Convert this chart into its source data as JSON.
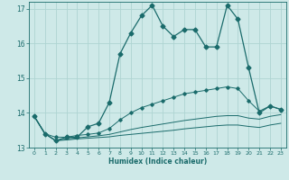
{
  "xlabel": "Humidex (Indice chaleur)",
  "ylabel": "",
  "background_color": "#cee9e8",
  "grid_color": "#aed4d2",
  "line_color": "#1a6b6b",
  "xlim": [
    -0.5,
    23.5
  ],
  "ylim": [
    13.0,
    17.2
  ],
  "xticks": [
    0,
    1,
    2,
    3,
    4,
    5,
    6,
    7,
    8,
    9,
    10,
    11,
    12,
    13,
    14,
    15,
    16,
    17,
    18,
    19,
    20,
    21,
    22,
    23
  ],
  "yticks": [
    13,
    14,
    15,
    16,
    17
  ],
  "series1_x": [
    0,
    1,
    2,
    3,
    4,
    5,
    6,
    7,
    8,
    9,
    10,
    11,
    12,
    13,
    14,
    15,
    16,
    17,
    18,
    19,
    20,
    21,
    22,
    23
  ],
  "series1_y": [
    13.9,
    13.4,
    13.2,
    13.3,
    13.3,
    13.6,
    13.7,
    14.3,
    15.7,
    16.3,
    16.8,
    17.1,
    16.5,
    16.2,
    16.4,
    16.4,
    15.9,
    15.9,
    17.1,
    16.7,
    15.3,
    14.0,
    14.2,
    14.1
  ],
  "series2_x": [
    0,
    1,
    2,
    3,
    4,
    5,
    6,
    7,
    8,
    9,
    10,
    11,
    12,
    13,
    14,
    15,
    16,
    17,
    18,
    19,
    20,
    21,
    22,
    23
  ],
  "series2_y": [
    13.9,
    13.4,
    13.3,
    13.3,
    13.35,
    13.38,
    13.42,
    13.55,
    13.8,
    14.0,
    14.15,
    14.25,
    14.35,
    14.45,
    14.55,
    14.6,
    14.65,
    14.7,
    14.75,
    14.7,
    14.35,
    14.05,
    14.2,
    14.1
  ],
  "series3_x": [
    0,
    1,
    2,
    3,
    4,
    5,
    6,
    7,
    8,
    9,
    10,
    11,
    12,
    13,
    14,
    15,
    16,
    17,
    18,
    19,
    20,
    21,
    22,
    23
  ],
  "series3_y": [
    13.9,
    13.4,
    13.2,
    13.25,
    13.28,
    13.31,
    13.34,
    13.38,
    13.45,
    13.52,
    13.58,
    13.63,
    13.68,
    13.73,
    13.78,
    13.82,
    13.86,
    13.9,
    13.92,
    13.92,
    13.85,
    13.82,
    13.9,
    13.95
  ],
  "series4_x": [
    0,
    1,
    2,
    3,
    4,
    5,
    6,
    7,
    8,
    9,
    10,
    11,
    12,
    13,
    14,
    15,
    16,
    17,
    18,
    19,
    20,
    21,
    22,
    23
  ],
  "series4_y": [
    13.9,
    13.4,
    13.2,
    13.22,
    13.25,
    13.27,
    13.29,
    13.31,
    13.35,
    13.38,
    13.41,
    13.44,
    13.47,
    13.5,
    13.54,
    13.57,
    13.6,
    13.63,
    13.65,
    13.65,
    13.61,
    13.58,
    13.65,
    13.7
  ]
}
